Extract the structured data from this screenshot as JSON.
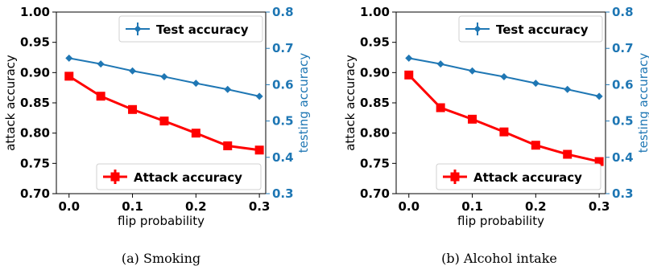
{
  "colors": {
    "attack": "#ff0000",
    "test": "#1f77b4",
    "text": "#000000",
    "axis_right": "#1f77b4"
  },
  "chart_data": [
    {
      "type": "line",
      "caption": "(a) Smoking",
      "xlabel": "flip probability",
      "ylabel": "attack accuracy",
      "ylabel_right": "testing accuracy",
      "x": [
        0.0,
        0.05,
        0.1,
        0.15,
        0.2,
        0.25,
        0.3
      ],
      "xticks": [
        "0.0",
        "0.1",
        "0.2",
        "0.3"
      ],
      "xtick_values": [
        0.0,
        0.1,
        0.2,
        0.3
      ],
      "xlim": [
        -0.02,
        0.31
      ],
      "ylim": [
        0.7,
        1.0
      ],
      "yticks": [
        "0.70",
        "0.75",
        "0.80",
        "0.85",
        "0.90",
        "0.95",
        "1.00"
      ],
      "ylim_right": [
        0.3,
        0.8
      ],
      "yticks_right": [
        "0.3",
        "0.4",
        "0.5",
        "0.6",
        "0.7",
        "0.8"
      ],
      "series": [
        {
          "name": "Attack accuracy",
          "axis": "left",
          "marker": "square",
          "color": "#ff0000",
          "values": [
            0.894,
            0.861,
            0.839,
            0.82,
            0.8,
            0.779,
            0.772
          ]
        },
        {
          "name": "Test accuracy",
          "axis": "right",
          "marker": "diamond",
          "color": "#1f77b4",
          "values": [
            0.673,
            0.657,
            0.638,
            0.622,
            0.604,
            0.587,
            0.568
          ]
        }
      ],
      "legend_test_placement": "top-right",
      "legend_attack_placement": "bottom-right"
    },
    {
      "type": "line",
      "caption": "(b) Alcohol intake",
      "xlabel": "flip probability",
      "ylabel": "attack accuracy",
      "ylabel_right": "testing accuracy",
      "x": [
        0.0,
        0.05,
        0.1,
        0.15,
        0.2,
        0.25,
        0.3
      ],
      "xticks": [
        "0.0",
        "0.1",
        "0.2",
        "0.3"
      ],
      "xtick_values": [
        0.0,
        0.1,
        0.2,
        0.3
      ],
      "xlim": [
        -0.02,
        0.31
      ],
      "ylim": [
        0.7,
        1.0
      ],
      "yticks": [
        "0.70",
        "0.75",
        "0.80",
        "0.85",
        "0.90",
        "0.95",
        "1.00"
      ],
      "ylim_right": [
        0.3,
        0.8
      ],
      "yticks_right": [
        "0.3",
        "0.4",
        "0.5",
        "0.6",
        "0.7",
        "0.8"
      ],
      "series": [
        {
          "name": "Attack accuracy",
          "axis": "left",
          "marker": "square",
          "color": "#ff0000",
          "values": [
            0.896,
            0.842,
            0.823,
            0.802,
            0.78,
            0.765,
            0.753
          ]
        },
        {
          "name": "Test accuracy",
          "axis": "right",
          "marker": "diamond",
          "color": "#1f77b4",
          "values": [
            0.673,
            0.657,
            0.638,
            0.622,
            0.604,
            0.587,
            0.568
          ]
        }
      ],
      "legend_test_placement": "top-right",
      "legend_attack_placement": "bottom-right"
    }
  ]
}
